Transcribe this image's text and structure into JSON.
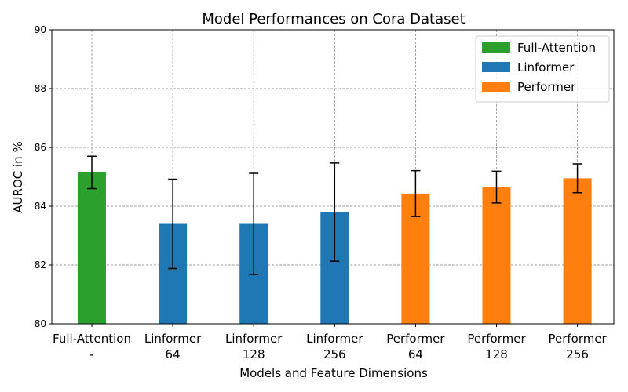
{
  "chart_data": {
    "type": "bar",
    "title": "Model Performances on Cora Dataset",
    "xlabel": "Models and Feature Dimensions",
    "ylabel": "AUROC in %",
    "ylim": [
      80,
      90
    ],
    "yticks": [
      80,
      82,
      84,
      86,
      88,
      90
    ],
    "grid": true,
    "legend_position": "top-right",
    "categories": [
      [
        "Full-Attention",
        "-"
      ],
      [
        "Linformer",
        "64"
      ],
      [
        "Linformer",
        "128"
      ],
      [
        "Linformer",
        "256"
      ],
      [
        "Performer",
        "64"
      ],
      [
        "Performer",
        "128"
      ],
      [
        "Performer",
        "256"
      ]
    ],
    "values": [
      85.15,
      83.4,
      83.4,
      83.8,
      84.43,
      84.65,
      84.95
    ],
    "errors": [
      0.55,
      1.52,
      1.72,
      1.67,
      0.78,
      0.54,
      0.49
    ],
    "bar_groups": [
      "Full-Attention",
      "Linformer",
      "Linformer",
      "Linformer",
      "Performer",
      "Performer",
      "Performer"
    ],
    "legend": [
      {
        "name": "Full-Attention",
        "color": "#2ca02c"
      },
      {
        "name": "Linformer",
        "color": "#1f77b4"
      },
      {
        "name": "Performer",
        "color": "#ff7f0e"
      }
    ]
  }
}
